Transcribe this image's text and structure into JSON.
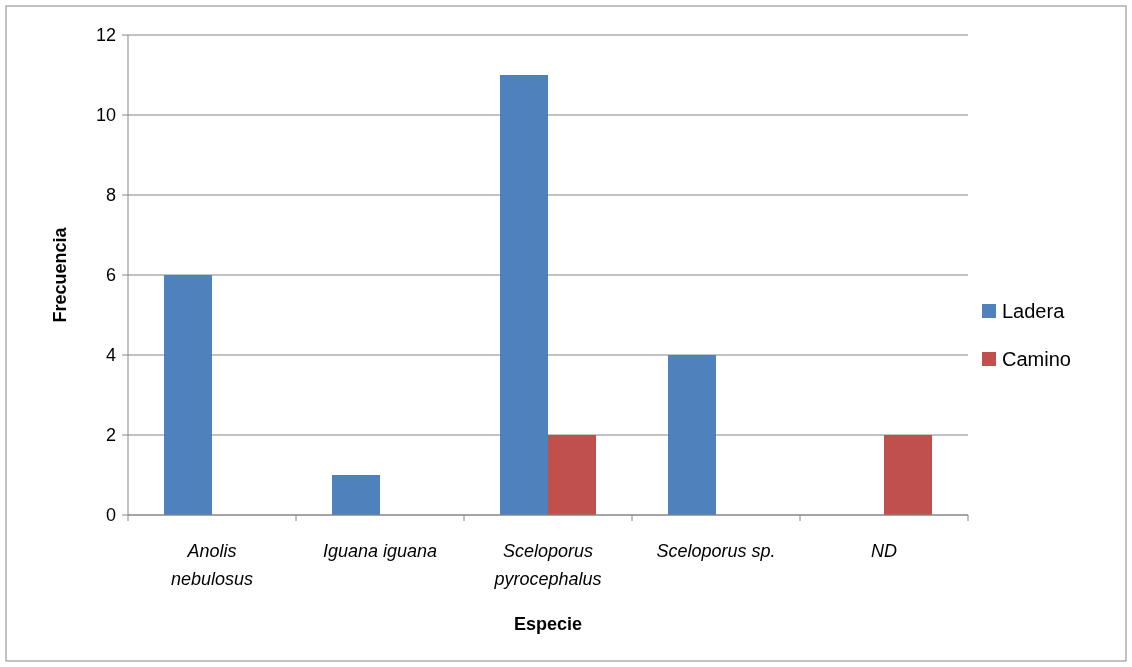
{
  "chart_data": {
    "type": "bar",
    "xlabel": "Especie",
    "ylabel": "Frecuencia",
    "categories": [
      "Anolis nebulosus",
      "Iguana iguana",
      "Sceloporus pyrocephalus",
      "Sceloporus sp.",
      "ND"
    ],
    "series": [
      {
        "name": "Ladera",
        "color": "#4f81bd",
        "values": [
          6,
          1,
          11,
          4,
          0
        ]
      },
      {
        "name": "Camino",
        "color": "#c0504d",
        "values": [
          0,
          0,
          2,
          0,
          2
        ]
      }
    ],
    "ylim": [
      0,
      12
    ],
    "yticks": [
      0,
      2,
      4,
      6,
      8,
      10,
      12
    ],
    "grid": "y",
    "legend": "right"
  }
}
